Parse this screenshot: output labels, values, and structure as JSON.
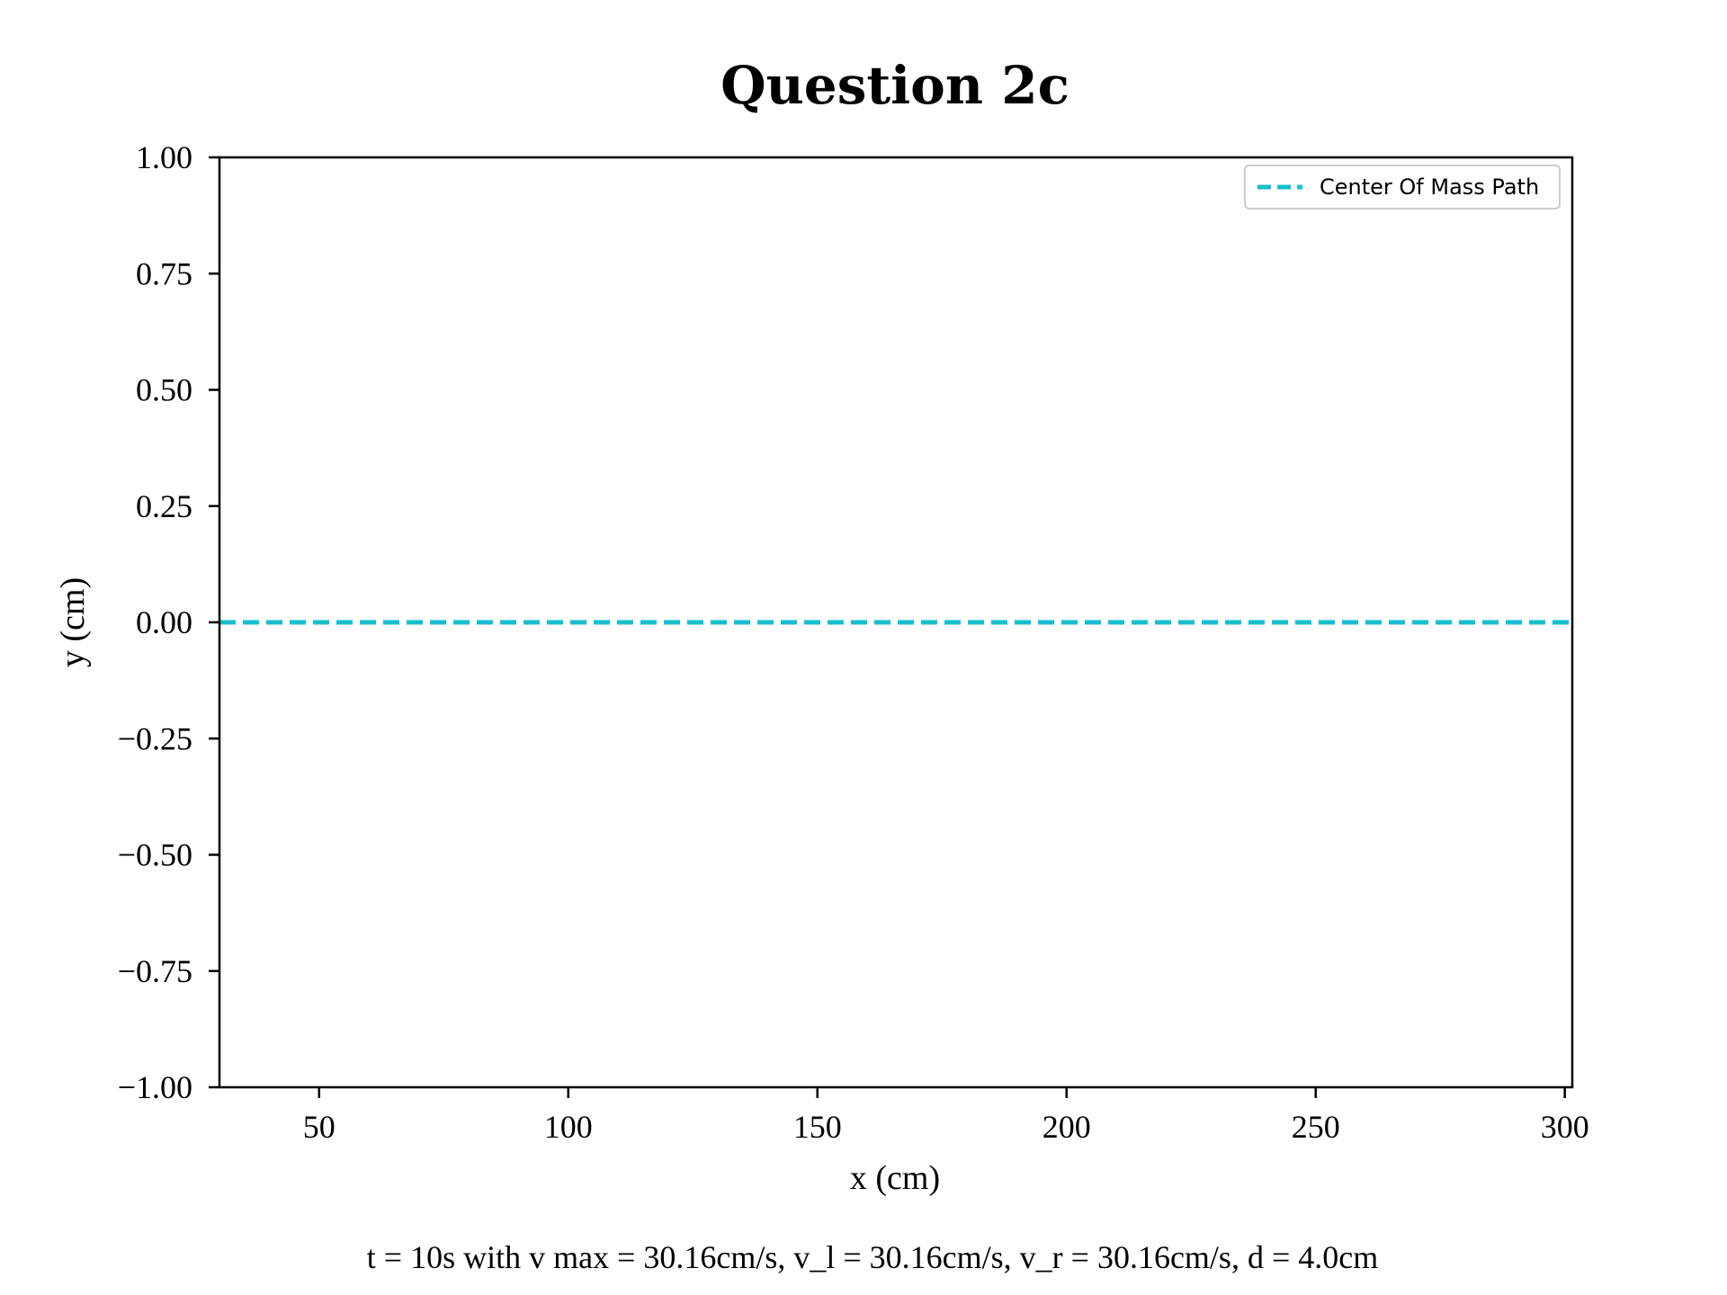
{
  "chart_data": {
    "type": "line",
    "title": "Question 2c",
    "xlabel": "x (cm)",
    "ylabel": "y (cm)",
    "xlim": [
      30,
      301.5
    ],
    "ylim": [
      -1.0,
      1.0
    ],
    "x_ticks": [
      50,
      100,
      150,
      200,
      250,
      300
    ],
    "x_tick_labels": [
      "50",
      "100",
      "150",
      "200",
      "250",
      "300"
    ],
    "y_ticks": [
      1.0,
      0.75,
      0.5,
      0.25,
      0.0,
      -0.25,
      -0.5,
      -0.75,
      -1.0
    ],
    "y_tick_labels": [
      "1.00",
      "0.75",
      "0.50",
      "0.25",
      "0.00",
      "−0.25",
      "−0.50",
      "−0.75",
      "−1.00"
    ],
    "grid": false,
    "legend_position": "top-right",
    "series": [
      {
        "name": "Center Of Mass Path",
        "color": "#17becf",
        "line_style": "dashed",
        "x": [
          30,
          301.5
        ],
        "y": [
          0.0,
          0.0
        ]
      }
    ],
    "caption": "t = 10s with v max = 30.16cm/s, v_l = 30.16cm/s, v_r = 30.16cm/s, d = 4.0cm"
  }
}
